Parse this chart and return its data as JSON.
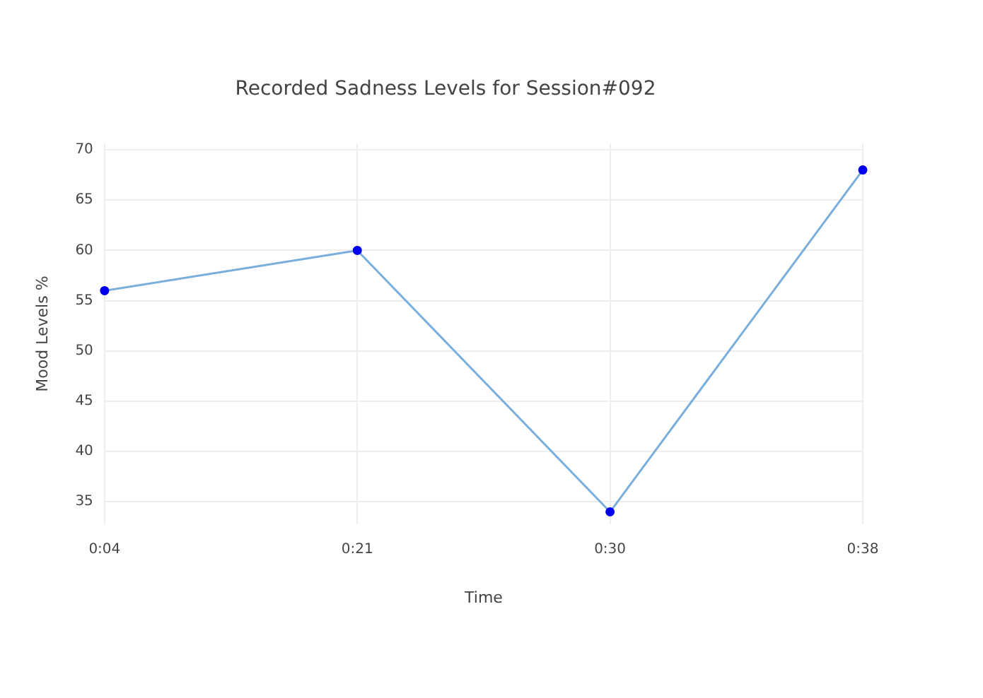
{
  "chart_data": {
    "type": "line",
    "title": "Recorded Sadness Levels for Session#092",
    "xlabel": "Time",
    "ylabel": "Mood Levels %",
    "categories": [
      "0:04",
      "0:21",
      "0:30",
      "0:38"
    ],
    "series": [
      {
        "color": "#7aaedb",
        "colors": [
          "#0000ee",
          "#0000ee",
          "#0000ee",
          "#0000ee"
        ],
        "values": [
          56,
          60,
          34,
          68
        ]
      }
    ],
    "ylim": [
      32.8,
      70.6
    ],
    "yticks": [
      35,
      40,
      45,
      50,
      55,
      60,
      65,
      70
    ],
    "grid": true,
    "legend": false,
    "marker": "circle",
    "line_style": "solid"
  }
}
